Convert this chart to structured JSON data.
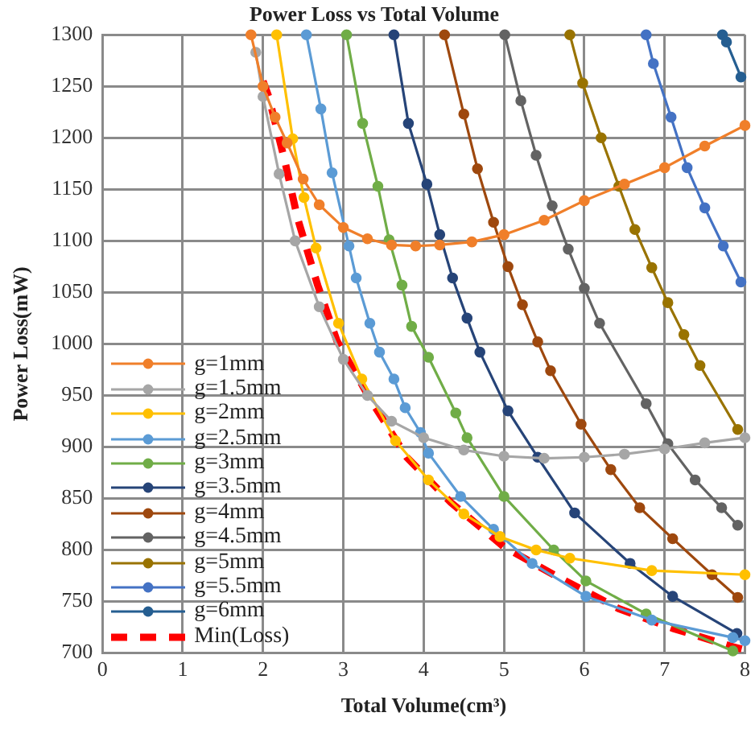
{
  "chart_data": {
    "type": "line",
    "title": "Power Loss vs Total Volume",
    "xlabel": "Total Volume(cm³)",
    "ylabel": "Power Loss(mW)",
    "xlim": [
      0,
      8
    ],
    "xticks": [
      0,
      1,
      2,
      3,
      4,
      5,
      6,
      7,
      8
    ],
    "ylim": [
      700,
      1300
    ],
    "yticks": [
      700,
      750,
      800,
      850,
      900,
      950,
      1000,
      1050,
      1100,
      1150,
      1200,
      1250,
      1300
    ],
    "grid": true,
    "legend": "bottom left",
    "marker": "circle",
    "series": [
      {
        "name": "g=1mm",
        "color": "#f07f2a",
        "x": [
          1.85,
          2.0,
          2.15,
          2.3,
          2.5,
          2.7,
          3.0,
          3.3,
          3.6,
          3.9,
          4.2,
          4.6,
          5.0,
          5.5,
          6.0,
          6.5,
          7.0,
          7.5,
          8.0
        ],
        "values": [
          1300,
          1250,
          1220,
          1195,
          1160,
          1135,
          1113,
          1102,
          1096,
          1095,
          1096,
          1099,
          1106,
          1120,
          1139,
          1155,
          1171,
          1192,
          1212
        ]
      },
      {
        "name": "g=1.5mm",
        "color": "#a6a6a6",
        "x": [
          1.91,
          2.0,
          2.2,
          2.4,
          2.7,
          3.0,
          3.3,
          3.6,
          4.0,
          4.5,
          5.0,
          5.5,
          6.0,
          6.5,
          7.0,
          7.5,
          8.0
        ],
        "values": [
          1283,
          1240,
          1165,
          1100,
          1036,
          985,
          950,
          925,
          909,
          897,
          891,
          889,
          890,
          893,
          898,
          904,
          909
        ]
      },
      {
        "name": "g=2mm",
        "color": "#ffc000",
        "x": [
          2.17,
          2.37,
          2.51,
          2.66,
          2.94,
          3.23,
          3.65,
          4.06,
          4.5,
          4.95,
          5.4,
          5.82,
          6.84,
          8.0
        ],
        "values": [
          1300,
          1199,
          1142,
          1093,
          1020,
          966,
          906,
          868,
          835,
          813,
          800,
          792,
          780,
          776
        ]
      },
      {
        "name": "g=2.5mm",
        "color": "#5b9bd5",
        "x": [
          2.54,
          2.72,
          2.86,
          3.07,
          3.16,
          3.33,
          3.45,
          3.63,
          3.77,
          3.96,
          4.06,
          4.46,
          4.87,
          5.35,
          6.02,
          6.84,
          7.85,
          8.0
        ],
        "values": [
          1300,
          1228,
          1166,
          1095,
          1064,
          1020,
          992,
          966,
          938,
          914,
          894,
          852,
          820,
          787,
          755,
          732,
          715,
          712
        ]
      },
      {
        "name": "g=3mm",
        "color": "#70ad47",
        "x": [
          3.04,
          3.24,
          3.43,
          3.57,
          3.73,
          3.85,
          4.06,
          4.4,
          4.54,
          5.0,
          5.62,
          6.02,
          6.77,
          7.85
        ],
        "values": [
          1300,
          1214,
          1153,
          1101,
          1057,
          1017,
          987,
          933,
          909,
          852,
          800,
          770,
          738,
          702
        ]
      },
      {
        "name": "g=3.5mm",
        "color": "#264478",
        "x": [
          3.63,
          3.81,
          4.04,
          4.2,
          4.36,
          4.54,
          4.7,
          5.05,
          5.42,
          5.88,
          6.57,
          7.1,
          7.9
        ],
        "values": [
          1300,
          1214,
          1155,
          1106,
          1064,
          1025,
          992,
          935,
          890,
          836,
          787,
          755,
          719
        ]
      },
      {
        "name": "g=4mm",
        "color": "#9e480e",
        "x": [
          4.26,
          4.5,
          4.67,
          4.87,
          5.05,
          5.23,
          5.42,
          5.58,
          5.96,
          6.33,
          6.69,
          7.1,
          7.59,
          7.91
        ],
        "values": [
          1300,
          1223,
          1170,
          1118,
          1075,
          1038,
          1002,
          974,
          922,
          878,
          841,
          811,
          776,
          754
        ]
      },
      {
        "name": "g=4.5mm",
        "color": "#636363",
        "x": [
          5.01,
          5.21,
          5.4,
          5.6,
          5.8,
          6.0,
          6.19,
          6.77,
          7.04,
          7.38,
          7.71,
          7.91
        ],
        "values": [
          1300,
          1236,
          1183,
          1134,
          1092,
          1054,
          1020,
          942,
          903,
          868,
          841,
          824
        ]
      },
      {
        "name": "g=5mm",
        "color": "#997300",
        "x": [
          5.82,
          5.98,
          6.21,
          6.43,
          6.63,
          6.84,
          7.04,
          7.24,
          7.44,
          7.91
        ],
        "values": [
          1300,
          1253,
          1200,
          1153,
          1111,
          1074,
          1040,
          1009,
          979,
          917
        ]
      },
      {
        "name": "g=5.5mm",
        "color": "#4472c4",
        "x": [
          6.77,
          6.86,
          7.08,
          7.28,
          7.5,
          7.73,
          7.95
        ],
        "values": [
          1300,
          1272,
          1220,
          1171,
          1132,
          1095,
          1060
        ]
      },
      {
        "name": "g=6mm",
        "color": "#255e91",
        "x": [
          7.72,
          7.77,
          7.95
        ],
        "values": [
          1300,
          1293,
          1259
        ]
      },
      {
        "name": "Min(Loss)",
        "color": "#ff0000",
        "marker": "none",
        "line_style": "dashed",
        "x": [
          2.0,
          2.07,
          2.27,
          2.43,
          2.68,
          2.92,
          3.33,
          3.79,
          4.34,
          5.0,
          5.62,
          6.43,
          7.1,
          7.85,
          8.0
        ],
        "values": [
          1255,
          1240,
          1178,
          1122,
          1057,
          1003,
          947,
          890,
          846,
          803,
          776,
          743,
          724,
          706,
          703
        ]
      }
    ]
  }
}
